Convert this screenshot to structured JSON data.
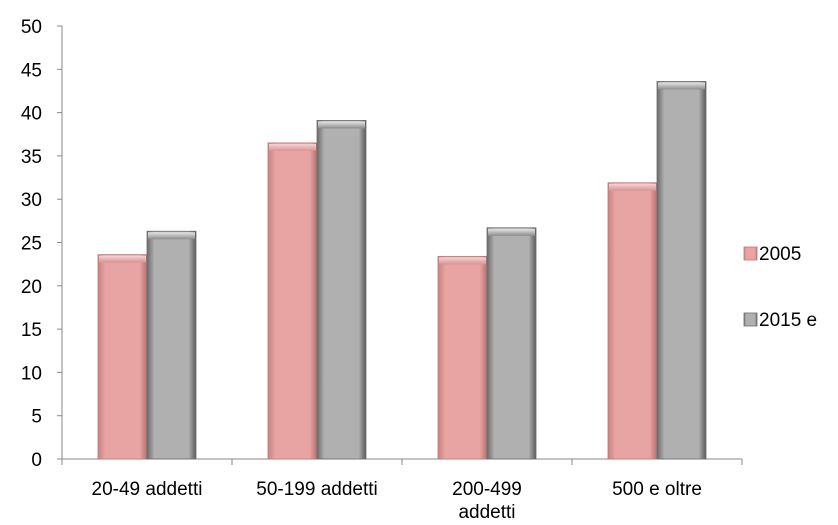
{
  "chart_data": {
    "type": "bar",
    "title": "",
    "xlabel": "",
    "ylabel": "",
    "categories": [
      [
        "20-49 addetti"
      ],
      [
        "50-199 addetti"
      ],
      [
        "200-499",
        "addetti"
      ],
      [
        "500 e oltre"
      ]
    ],
    "series": [
      {
        "name": "2005",
        "values": [
          23.6,
          36.5,
          23.4,
          31.9
        ],
        "color": "#e8a0a0"
      },
      {
        "name": "2015 e",
        "values": [
          26.3,
          39.1,
          26.7,
          43.6
        ],
        "color": "#a8a8a8"
      }
    ],
    "ylim": [
      0,
      50
    ],
    "yticks": [
      0,
      5,
      10,
      15,
      20,
      25,
      30,
      35,
      40,
      45,
      50
    ],
    "grid": false,
    "legend_position": "right",
    "bar_style": "bevel"
  }
}
